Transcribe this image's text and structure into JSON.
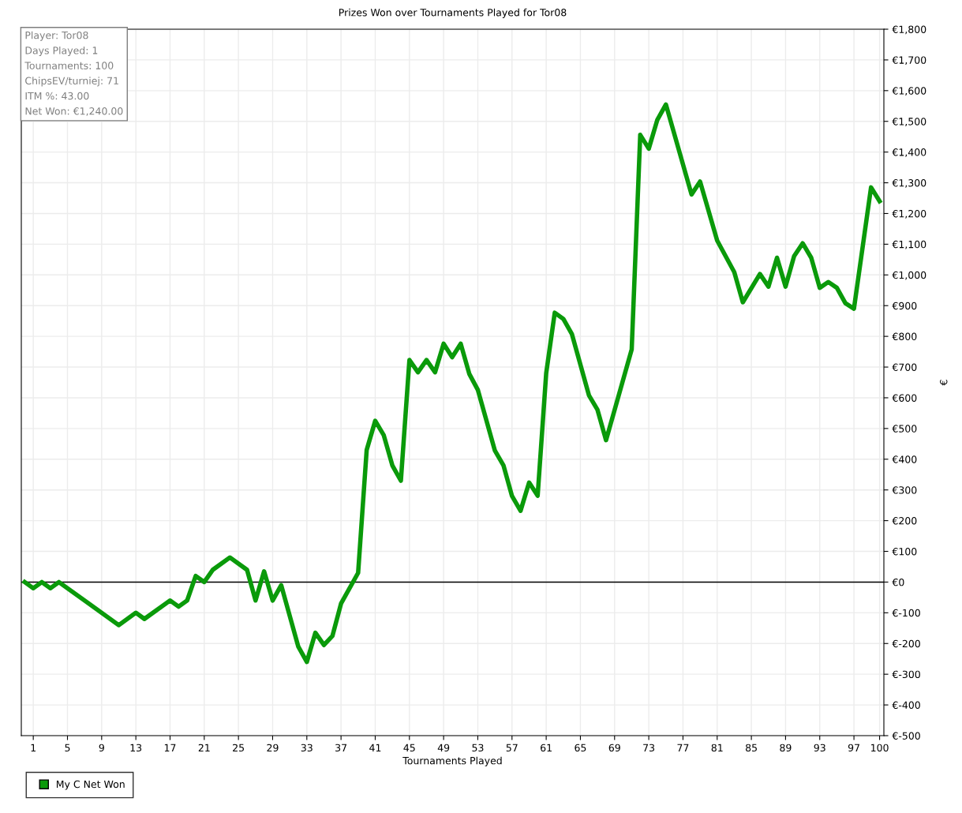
{
  "chart_data": {
    "type": "line",
    "title": "Prizes Won over Tournaments Played for Tor08",
    "xlabel": "Tournaments Played",
    "ylabel": "€",
    "annotations": [
      "Player: Tor08",
      "Days Played: 1",
      "Tournaments: 100",
      "ChipsEV/turniej: 71",
      "ITM %: 43.00",
      "Net Won: €1,240.00"
    ],
    "series": [
      {
        "name": "My C Net Won",
        "color": "#0a9a0a",
        "x": [
          0,
          1,
          2,
          3,
          4,
          11,
          13,
          14,
          17,
          18,
          19,
          20,
          21,
          22,
          24,
          26,
          27,
          28,
          29,
          30,
          32,
          33,
          34,
          35,
          36,
          37,
          39,
          40,
          41,
          42,
          43,
          44,
          45,
          46,
          47,
          48,
          49,
          50,
          51,
          52,
          53,
          55,
          56,
          57,
          58,
          59,
          60,
          61,
          62,
          63,
          64,
          66,
          67,
          68,
          71,
          72,
          73,
          74,
          75,
          78,
          79,
          81,
          83,
          84,
          86,
          87,
          88,
          89,
          90,
          91,
          92,
          93,
          94,
          95,
          96,
          97,
          99,
          100
        ],
        "values": [
          0,
          -20,
          0,
          -20,
          0,
          -140,
          -100,
          -120,
          -60,
          -80,
          -60,
          20,
          0,
          40,
          80,
          40,
          -60,
          35,
          -60,
          -10,
          -210,
          -260,
          -165,
          -205,
          -175,
          -70,
          30,
          430,
          525,
          478,
          380,
          330,
          723,
          683,
          723,
          683,
          776,
          732,
          776,
          678,
          626,
          428,
          380,
          280,
          232,
          324,
          281,
          680,
          877,
          857,
          808,
          608,
          561,
          462,
          757,
          1456,
          1411,
          1505,
          1555,
          1262,
          1304,
          1112,
          1009,
          911,
          1003,
          962,
          1056,
          962,
          1061,
          1103,
          1056,
          958,
          977,
          958,
          908,
          890,
          1285,
          1240
        ]
      }
    ],
    "xlim": [
      -0.4,
      100.5
    ],
    "xticks": [
      1,
      5,
      9,
      13,
      17,
      21,
      25,
      29,
      33,
      37,
      41,
      45,
      49,
      53,
      57,
      61,
      65,
      69,
      73,
      77,
      81,
      85,
      89,
      93,
      97,
      100
    ],
    "ylim": [
      -500,
      1800
    ],
    "yticks": [
      {
        "value": -500,
        "label": "€-500"
      },
      {
        "value": -400,
        "label": "€-400"
      },
      {
        "value": -300,
        "label": "€-300"
      },
      {
        "value": -200,
        "label": "€-200"
      },
      {
        "value": -100,
        "label": "€-100"
      },
      {
        "value": 0,
        "label": "€0"
      },
      {
        "value": 100,
        "label": "€100"
      },
      {
        "value": 200,
        "label": "€200"
      },
      {
        "value": 300,
        "label": "€300"
      },
      {
        "value": 400,
        "label": "€400"
      },
      {
        "value": 500,
        "label": "€500"
      },
      {
        "value": 600,
        "label": "€600"
      },
      {
        "value": 700,
        "label": "€700"
      },
      {
        "value": 800,
        "label": "€800"
      },
      {
        "value": 900,
        "label": "€900"
      },
      {
        "value": 1000,
        "label": "€1,000"
      },
      {
        "value": 1100,
        "label": "€1,100"
      },
      {
        "value": 1200,
        "label": "€1,200"
      },
      {
        "value": 1300,
        "label": "€1,300"
      },
      {
        "value": 1400,
        "label": "€1,400"
      },
      {
        "value": 1500,
        "label": "€1,500"
      },
      {
        "value": 1600,
        "label": "€1,600"
      },
      {
        "value": 1700,
        "label": "€1,700"
      },
      {
        "value": 1800,
        "label": "€1,800"
      }
    ],
    "ref_lines": [
      {
        "axis": "y",
        "value": 0,
        "color": "#000000"
      }
    ],
    "grid": true,
    "legend": "bottom left",
    "line_style": "solid",
    "marker": "none"
  }
}
